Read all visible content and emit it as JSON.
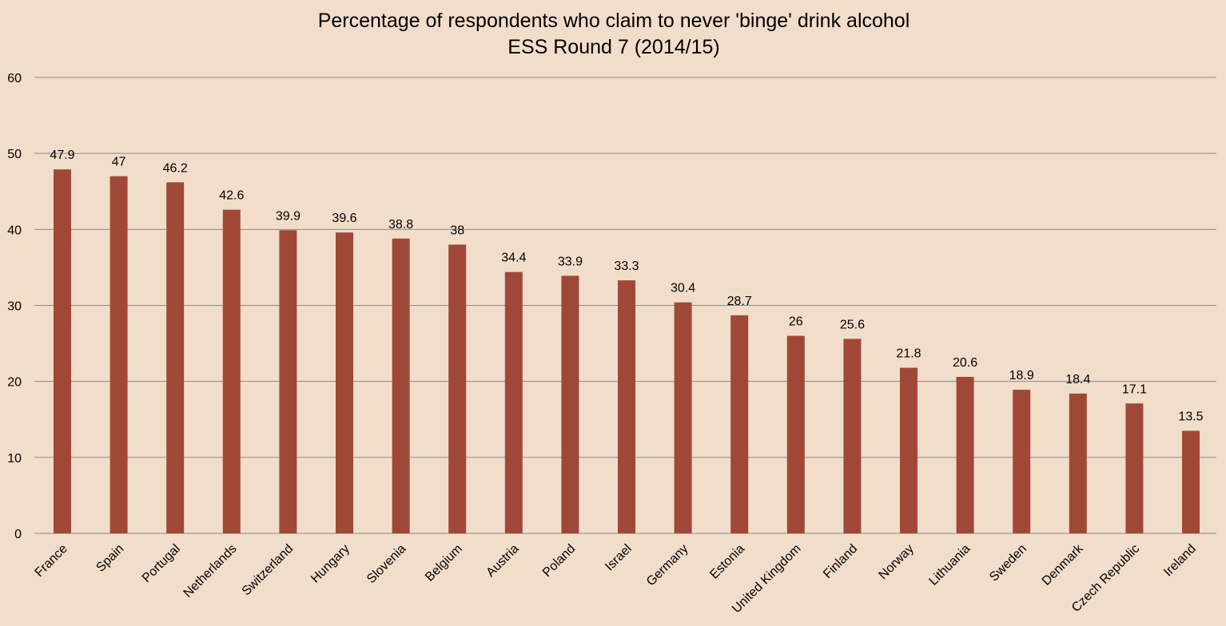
{
  "colors": {
    "background": "#F2DDCB",
    "bar": "#A04838",
    "grid": "#8A8A8A",
    "text": "#000000"
  },
  "chart_data": {
    "type": "bar",
    "title": "Percentage of respondents who claim to never 'binge' drink alcohol",
    "subtitle": "ESS Round 7 (2014/15)",
    "xlabel": "",
    "ylabel": "",
    "ylim": [
      0,
      60
    ],
    "yticks": [
      0,
      10,
      20,
      30,
      40,
      50,
      60
    ],
    "grid": true,
    "legend": "none",
    "categories": [
      "France",
      "Spain",
      "Portugal",
      "Netherlands",
      "Switzerland",
      "Hungary",
      "Slovenia",
      "Belgium",
      "Austria",
      "Poland",
      "Israel",
      "Germany",
      "Estonia",
      "United Kingdom",
      "Finland",
      "Norway",
      "Lithuania",
      "Sweden",
      "Denmark",
      "Czech Republic",
      "Ireland"
    ],
    "values": [
      47.9,
      47,
      46.2,
      42.6,
      39.9,
      39.6,
      38.8,
      38,
      34.4,
      33.9,
      33.3,
      30.4,
      28.7,
      26,
      25.6,
      21.8,
      20.6,
      18.9,
      18.4,
      17.1,
      13.5
    ],
    "data_labels": [
      "47.9",
      "47",
      "46.2",
      "42.6",
      "39.9",
      "39.6",
      "38.8",
      "38",
      "34.4",
      "33.9",
      "33.3",
      "30.4",
      "28.7",
      "26",
      "25.6",
      "21.8",
      "20.6",
      "18.9",
      "18.4",
      "17.1",
      "13.5"
    ]
  }
}
